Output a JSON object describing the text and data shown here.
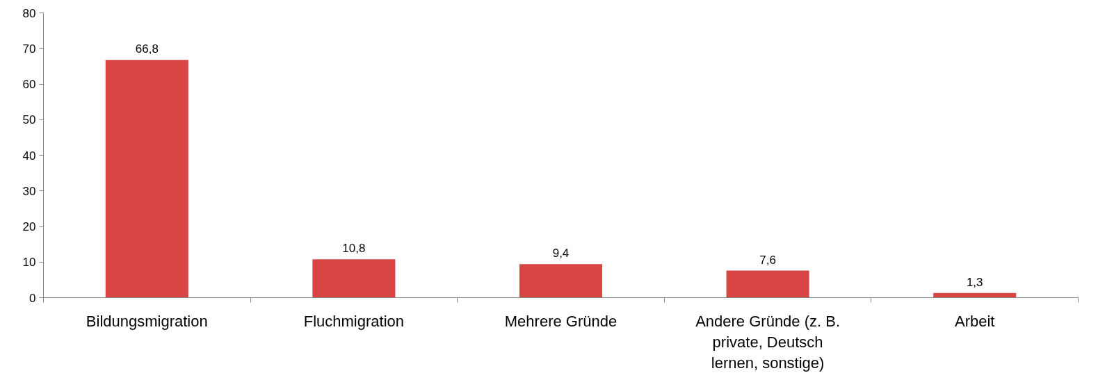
{
  "chart_data": {
    "type": "bar",
    "categories": [
      "Bildungsmigration",
      "Fluchmigration",
      "Mehrere Gründe",
      "Andere Gründe (z. B.\nprivate, Deutsch\nlernen, sonstige)",
      "Arbeit"
    ],
    "values": [
      66.8,
      10.8,
      9.4,
      7.6,
      1.3
    ],
    "value_labels": [
      "66,8",
      "10,8",
      "9,4",
      "7,6",
      "1,3"
    ],
    "color": "#d94444",
    "ylim": [
      0,
      80
    ],
    "yticks": [
      0,
      10,
      20,
      30,
      40,
      50,
      60,
      70,
      80
    ],
    "grid": false
  }
}
